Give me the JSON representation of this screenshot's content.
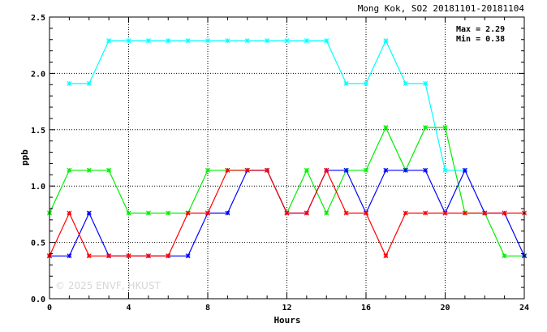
{
  "chart_data": {
    "type": "line",
    "title": "Mong Kok, SO2 20181101-20181104",
    "xlabel": "Hours",
    "ylabel": "ppb",
    "xlim": [
      0,
      24
    ],
    "ylim": [
      0,
      2.5
    ],
    "x_ticks": [
      0,
      4,
      8,
      12,
      16,
      20,
      24
    ],
    "y_ticks": [
      0.0,
      0.5,
      1.0,
      1.5,
      2.0,
      2.5
    ],
    "grid": true,
    "stats": {
      "max_label": "Max = 2.29",
      "min_label": "Min = 0.38"
    },
    "watermark": "© 2025  ENVF, HKUST",
    "series": [
      {
        "color": "#00ffff",
        "points": [
          [
            1,
            1.91
          ],
          [
            2,
            1.91
          ],
          [
            3,
            2.29
          ],
          [
            4,
            2.29
          ],
          [
            5,
            2.29
          ],
          [
            6,
            2.29
          ],
          [
            7,
            2.29
          ],
          [
            8,
            2.29
          ],
          [
            9,
            2.29
          ],
          [
            10,
            2.29
          ],
          [
            11,
            2.29
          ],
          [
            12,
            2.29
          ],
          [
            13,
            2.29
          ],
          [
            14,
            2.29
          ],
          [
            15,
            1.91
          ],
          [
            16,
            1.91
          ],
          [
            17,
            2.29
          ],
          [
            18,
            1.91
          ],
          [
            19,
            1.91
          ],
          [
            20,
            1.14
          ],
          [
            21,
            1.14
          ]
        ]
      },
      {
        "color": "#00ee00",
        "points": [
          [
            0,
            0.76
          ],
          [
            1,
            1.14
          ],
          [
            2,
            1.14
          ],
          [
            3,
            1.14
          ],
          [
            4,
            0.76
          ],
          [
            5,
            0.76
          ],
          [
            6,
            0.76
          ],
          [
            7,
            0.76
          ],
          [
            8,
            1.14
          ],
          [
            9,
            1.14
          ],
          [
            10,
            1.14
          ],
          [
            11,
            1.14
          ],
          [
            12,
            0.76
          ],
          [
            13,
            1.14
          ],
          [
            14,
            0.76
          ],
          [
            15,
            1.14
          ],
          [
            16,
            1.14
          ],
          [
            17,
            1.52
          ],
          [
            18,
            1.14
          ],
          [
            19,
            1.52
          ],
          [
            20,
            1.52
          ],
          [
            21,
            0.76
          ],
          [
            22,
            0.76
          ],
          [
            23,
            0.38
          ],
          [
            24,
            0.38
          ]
        ]
      },
      {
        "color": "#0000ff",
        "points": [
          [
            0,
            0.38
          ],
          [
            1,
            0.38
          ],
          [
            2,
            0.76
          ],
          [
            3,
            0.38
          ],
          [
            4,
            0.38
          ],
          [
            5,
            0.38
          ],
          [
            6,
            0.38
          ],
          [
            7,
            0.38
          ],
          [
            8,
            0.76
          ],
          [
            9,
            0.76
          ],
          [
            10,
            1.14
          ],
          [
            11,
            1.14
          ],
          [
            12,
            0.76
          ],
          [
            13,
            0.76
          ],
          [
            14,
            1.14
          ],
          [
            15,
            1.14
          ],
          [
            16,
            0.76
          ],
          [
            17,
            1.14
          ],
          [
            18,
            1.14
          ],
          [
            19,
            1.14
          ],
          [
            20,
            0.76
          ],
          [
            21,
            1.14
          ],
          [
            22,
            0.76
          ],
          [
            23,
            0.76
          ],
          [
            24,
            0.38
          ]
        ]
      },
      {
        "color": "#ff0000",
        "points": [
          [
            0,
            0.38
          ],
          [
            1,
            0.76
          ],
          [
            2,
            0.38
          ],
          [
            3,
            0.38
          ],
          [
            4,
            0.38
          ],
          [
            5,
            0.38
          ],
          [
            6,
            0.38
          ],
          [
            7,
            0.76
          ],
          [
            8,
            0.76
          ],
          [
            9,
            1.14
          ],
          [
            10,
            1.14
          ],
          [
            11,
            1.14
          ],
          [
            12,
            0.76
          ],
          [
            13,
            0.76
          ],
          [
            14,
            1.14
          ],
          [
            15,
            0.76
          ],
          [
            16,
            0.76
          ],
          [
            17,
            0.38
          ],
          [
            18,
            0.76
          ],
          [
            19,
            0.76
          ],
          [
            20,
            0.76
          ],
          [
            21,
            0.76
          ],
          [
            22,
            0.76
          ],
          [
            23,
            0.76
          ],
          [
            24,
            0.76
          ]
        ]
      }
    ]
  }
}
